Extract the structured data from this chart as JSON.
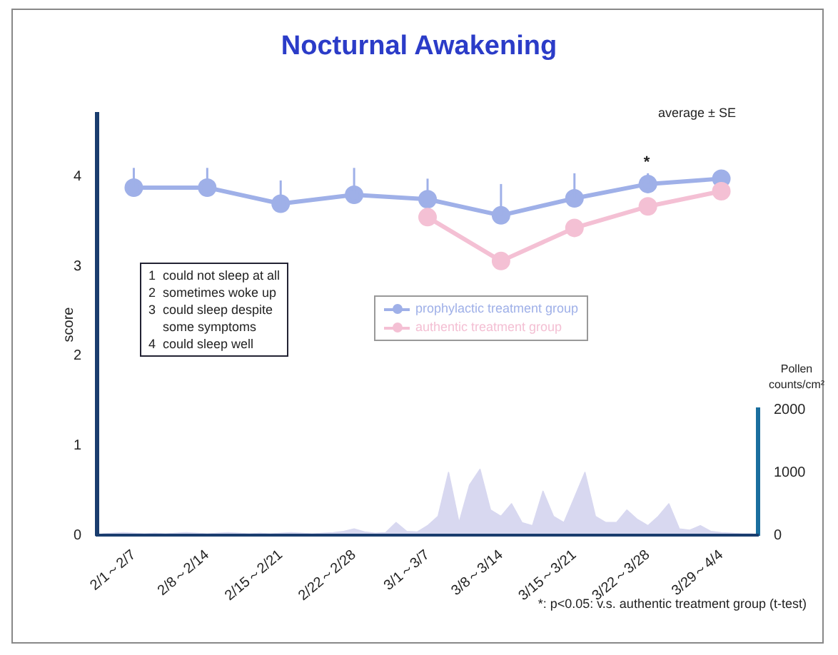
{
  "chart_data": [
    {
      "type": "line",
      "title": "Nocturnal Awakening",
      "ylabel": "score",
      "categories": [
        "2/1～2/7",
        "2/8～2/14",
        "2/15～2/21",
        "2/22～2/28",
        "3/1～3/7",
        "3/8～3/14",
        "3/15～3/21",
        "3/22～3/28",
        "3/29～4/4"
      ],
      "series": [
        {
          "name": "prophylactic treatment group",
          "color": "#9fb0e8",
          "values": [
            3.88,
            3.88,
            3.7,
            3.8,
            3.75,
            3.57,
            3.76,
            3.92,
            3.98
          ],
          "errors": [
            [
              3.88,
              4.1
            ],
            [
              3.88,
              4.1
            ],
            [
              3.7,
              3.96
            ],
            [
              3.8,
              4.1
            ],
            [
              3.75,
              3.98
            ],
            [
              3.57,
              3.92
            ],
            [
              3.76,
              4.04
            ],
            [
              3.92,
              4.04
            ],
            null
          ]
        },
        {
          "name": "authentic treatment group",
          "color": "#f4c0d4",
          "values": [
            null,
            null,
            null,
            null,
            3.55,
            3.06,
            3.43,
            3.67,
            3.84
          ]
        }
      ],
      "ylim": [
        0,
        4.7
      ],
      "yticks": [
        0,
        1,
        2,
        3,
        4
      ],
      "marker": "circle",
      "legend": "center right",
      "grid": false,
      "annotations": [
        "1  could not sleep at all\n2  sometimes woke up\n3  could sleep despite\n    some symptoms\n4  could sleep well",
        "average ± SE",
        "*",
        "*: p<0.05: v.s. authentic treatment group (t-test)"
      ]
    },
    {
      "type": "area",
      "ylabel": "Pollen counts/cm²",
      "categories": [
        null,
        null,
        null,
        null,
        null,
        null,
        null,
        null,
        null,
        null,
        null,
        null,
        null,
        null,
        null,
        null,
        null,
        null,
        null,
        null,
        null,
        null,
        null,
        null,
        null,
        null,
        null,
        null,
        null,
        null,
        null,
        null,
        null,
        null,
        null,
        null,
        null,
        null,
        null,
        null,
        null,
        null,
        null,
        null,
        null,
        null,
        null,
        null,
        null,
        null,
        null,
        null,
        null,
        null,
        null,
        null,
        null,
        null,
        null,
        null,
        null,
        null,
        null
      ],
      "series": [
        {
          "color": "#d8d8f0",
          "values": [
            20,
            30,
            40,
            30,
            20,
            30,
            20,
            30,
            40,
            30,
            20,
            30,
            40,
            30,
            20,
            30,
            20,
            30,
            40,
            30,
            20,
            30,
            40,
            60,
            100,
            50,
            30,
            40,
            200,
            60,
            50,
            150,
            300,
            1000,
            200,
            800,
            1050,
            400,
            300,
            500,
            200,
            150,
            700,
            300,
            200,
            600,
            1000,
            300,
            200,
            200,
            400,
            250,
            150,
            300,
            500,
            100,
            80,
            150,
            60,
            40,
            30,
            20,
            20
          ]
        }
      ],
      "ylim": [
        0,
        2000
      ],
      "yticks": [
        0,
        1000,
        2000
      ],
      "tick_labels": "y",
      "grid": false
    }
  ]
}
